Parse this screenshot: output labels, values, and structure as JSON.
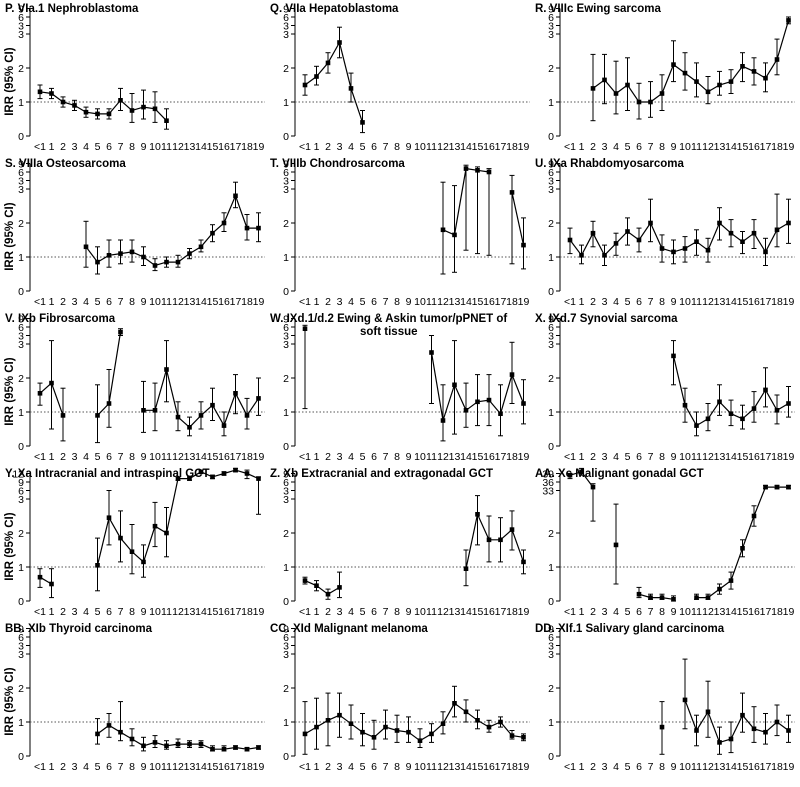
{
  "figure": {
    "y_axis_label": "IRR (95% CI)",
    "x_tick_labels": [
      "<1",
      "1",
      "2",
      "3",
      "4",
      "5",
      "6",
      "7",
      "8",
      "9",
      "10",
      "11",
      "12",
      "13",
      "14",
      "15",
      "16",
      "17",
      "18",
      "19"
    ],
    "y_tick_labels": [
      "0",
      "1",
      "2",
      "3",
      "3",
      "6",
      "9"
    ],
    "y_tick_labels_aa": [
      "0",
      "1",
      "2",
      "33",
      "36",
      "39"
    ],
    "y_tick_labels_y": [
      "0",
      "1",
      "2",
      "3",
      "6",
      "9",
      "12"
    ]
  },
  "chart_data": [
    {
      "type": "line",
      "title": "P. VIa.1 Nephroblastoma",
      "ylabel": "IRR (95% CI)",
      "reference_line": 1,
      "x": [
        0,
        1,
        2,
        3,
        4,
        5,
        6,
        7,
        8,
        9,
        10,
        11
      ],
      "values": [
        1.3,
        1.25,
        1.0,
        0.9,
        0.7,
        0.65,
        0.65,
        1.05,
        0.75,
        0.85,
        0.8,
        0.45
      ],
      "ci_low": [
        1.1,
        1.1,
        0.85,
        0.75,
        0.55,
        0.5,
        0.5,
        0.75,
        0.4,
        0.5,
        0.4,
        0.2
      ],
      "ci_high": [
        1.5,
        1.4,
        1.15,
        1.05,
        0.85,
        0.8,
        0.8,
        1.4,
        1.25,
        1.35,
        1.3,
        0.8
      ]
    },
    {
      "type": "line",
      "title": "Q. VIIa Hepatoblastoma",
      "ylabel": "",
      "reference_line": 1,
      "x": [
        0,
        1,
        2,
        3,
        4,
        5
      ],
      "values": [
        1.5,
        1.75,
        2.15,
        2.75,
        1.4,
        0.4
      ],
      "ci_low": [
        1.2,
        1.5,
        1.85,
        2.3,
        1.0,
        0.1
      ],
      "ci_high": [
        1.8,
        2.05,
        2.45,
        3.2,
        1.85,
        0.75
      ]
    },
    {
      "type": "line",
      "title": "R. VIIIc Ewing sarcoma",
      "ylabel": "",
      "reference_line": 1,
      "x": [
        2,
        3,
        4,
        5,
        6,
        7,
        8,
        9,
        10,
        11,
        12,
        13,
        14,
        15,
        16,
        17,
        18,
        19
      ],
      "values": [
        1.4,
        1.65,
        1.25,
        1.5,
        1.0,
        1.0,
        1.25,
        2.1,
        1.85,
        1.6,
        1.3,
        1.5,
        1.6,
        2.05,
        1.9,
        1.7,
        2.25,
        3.4
      ],
      "ci_low": [
        0.45,
        0.95,
        0.65,
        0.75,
        0.5,
        0.55,
        0.75,
        1.6,
        1.35,
        1.15,
        0.95,
        1.2,
        1.25,
        1.6,
        1.5,
        1.3,
        1.8,
        3.3
      ],
      "ci_high": [
        2.4,
        2.4,
        2.2,
        2.3,
        1.55,
        1.6,
        1.8,
        2.8,
        2.45,
        2.15,
        1.75,
        1.9,
        1.95,
        2.45,
        2.3,
        2.15,
        2.85,
        3.5
      ]
    },
    {
      "type": "line",
      "title": "S. VIIIa Osteosarcoma",
      "ylabel": "IRR (95% CI)",
      "reference_line": 1,
      "x": [
        4,
        5,
        6,
        7,
        8,
        9,
        10,
        11,
        12,
        13,
        14,
        15,
        16,
        17,
        18,
        19
      ],
      "values": [
        1.3,
        0.85,
        1.05,
        1.1,
        1.15,
        1.0,
        0.75,
        0.85,
        0.85,
        1.1,
        1.3,
        1.7,
        2.0,
        2.8,
        1.85,
        1.85
      ],
      "ci_low": [
        0.7,
        0.5,
        0.7,
        0.8,
        0.85,
        0.75,
        0.6,
        0.7,
        0.7,
        0.95,
        1.15,
        1.45,
        1.75,
        2.45,
        1.5,
        1.45
      ],
      "ci_high": [
        2.05,
        1.3,
        1.5,
        1.5,
        1.5,
        1.3,
        0.95,
        1.0,
        1.05,
        1.25,
        1.5,
        1.95,
        2.3,
        3.2,
        2.25,
        2.3
      ]
    },
    {
      "type": "line",
      "title": "T. VIIIb Chondrosarcoma",
      "ylabel": "",
      "reference_line": 1,
      "x": [
        12,
        13,
        14,
        15,
        16,
        18,
        19
      ],
      "values": [
        1.8,
        1.65,
        3.6,
        3.55,
        3.5,
        2.9,
        1.35
      ],
      "ci_low": [
        0.5,
        0.55,
        1.2,
        1.1,
        1.05,
        0.8,
        0.65
      ],
      "ci_high": [
        3.2,
        3.1,
        3.7,
        3.65,
        3.6,
        3.4,
        2.15
      ]
    },
    {
      "type": "line",
      "title": "U. IXa Rhabdomyosarcoma",
      "ylabel": "",
      "reference_line": 1,
      "x": [
        0,
        1,
        2,
        3,
        4,
        5,
        6,
        7,
        8,
        9,
        10,
        11,
        12,
        13,
        14,
        15,
        16,
        17,
        18,
        19
      ],
      "values": [
        1.5,
        1.05,
        1.7,
        1.05,
        1.4,
        1.75,
        1.5,
        2.0,
        1.25,
        1.15,
        1.25,
        1.45,
        1.2,
        2.0,
        1.7,
        1.45,
        1.7,
        1.15,
        1.8,
        2.0
      ],
      "ci_low": [
        1.1,
        0.8,
        1.3,
        0.75,
        1.05,
        1.35,
        1.15,
        1.45,
        0.85,
        0.8,
        0.85,
        1.05,
        0.85,
        1.5,
        1.3,
        1.1,
        1.25,
        0.75,
        1.3,
        1.4
      ],
      "ci_high": [
        1.85,
        1.35,
        2.05,
        1.35,
        1.7,
        2.15,
        1.85,
        2.7,
        1.65,
        1.5,
        1.6,
        1.8,
        1.55,
        2.45,
        2.1,
        1.75,
        2.1,
        1.55,
        2.85,
        2.7
      ]
    },
    {
      "type": "line",
      "title": "V. IXb Fibrosarcoma",
      "ylabel": "IRR (95% CI)",
      "reference_line": 1,
      "x": [
        0,
        1,
        2,
        5,
        6,
        7,
        9,
        10,
        11,
        12,
        13,
        14,
        15,
        16,
        17,
        18,
        19
      ],
      "values": [
        1.55,
        1.85,
        0.9,
        0.9,
        1.25,
        3.35,
        1.05,
        1.05,
        2.25,
        0.85,
        0.55,
        0.9,
        1.2,
        0.6,
        1.55,
        0.9,
        1.4
      ],
      "ci_low": [
        1.2,
        0.5,
        0.15,
        0.1,
        0.55,
        3.25,
        0.4,
        0.45,
        1.3,
        0.45,
        0.3,
        0.5,
        0.75,
        0.3,
        0.95,
        0.5,
        0.9
      ],
      "ci_high": [
        1.85,
        3.1,
        1.7,
        1.8,
        2.25,
        3.45,
        1.9,
        1.85,
        3.1,
        1.3,
        0.85,
        1.3,
        1.7,
        1.0,
        2.1,
        1.4,
        2.0
      ]
    },
    {
      "type": "line",
      "title": "W. IXd.1/d.2 Ewing & Askin tumor/pPNET of soft tissue",
      "ylabel": "",
      "reference_line": 1,
      "x": [
        0,
        11,
        12,
        13,
        14,
        15,
        16,
        17,
        18,
        19
      ],
      "values": [
        3.45,
        2.75,
        0.75,
        1.8,
        1.05,
        1.3,
        1.35,
        0.95,
        2.1,
        1.25
      ],
      "ci_low": [
        1.1,
        1.25,
        0.15,
        0.35,
        0.55,
        0.6,
        0.6,
        0.3,
        1.25,
        0.65
      ],
      "ci_high": [
        3.55,
        3.25,
        1.8,
        3.1,
        1.85,
        2.1,
        2.1,
        1.8,
        3.05,
        1.95
      ]
    },
    {
      "type": "line",
      "title": "X. IXd.7 Synovial sarcoma",
      "ylabel": "",
      "reference_line": 1,
      "x": [
        9,
        10,
        11,
        12,
        13,
        14,
        15,
        16,
        17,
        18,
        19
      ],
      "values": [
        2.65,
        1.2,
        0.6,
        0.8,
        1.3,
        0.95,
        0.8,
        1.1,
        1.65,
        1.05,
        1.25
      ],
      "ci_low": [
        1.8,
        0.7,
        0.3,
        0.45,
        0.9,
        0.6,
        0.5,
        0.7,
        1.15,
        0.65,
        0.85
      ],
      "ci_high": [
        3.1,
        1.7,
        1.0,
        1.25,
        1.8,
        1.35,
        1.2,
        1.6,
        2.3,
        1.5,
        1.75
      ]
    },
    {
      "type": "line",
      "title": "Y. Xa Intracranial and intraspinal GCT",
      "ylabel": "IRR (95% CI)",
      "reference_line": 1,
      "y_tick_values": [
        0,
        1,
        2,
        3,
        6,
        9,
        12
      ],
      "x": [
        0,
        1,
        5,
        6,
        7,
        8,
        9,
        10,
        11,
        12,
        13,
        14,
        15,
        16,
        17,
        18,
        19
      ],
      "values": [
        0.7,
        0.5,
        1.05,
        2.45,
        1.85,
        1.45,
        1.15,
        2.2,
        2.0,
        3.6,
        3.6,
        3.8,
        3.65,
        3.75,
        3.85,
        3.75,
        3.6
      ],
      "ci_low": [
        0.4,
        0.1,
        0.3,
        1.65,
        1.15,
        0.8,
        0.7,
        1.6,
        1.3,
        3.55,
        3.55,
        3.75,
        3.6,
        3.7,
        3.8,
        3.6,
        2.55
      ],
      "ci_high": [
        0.95,
        0.95,
        1.85,
        3.25,
        2.65,
        2.25,
        1.65,
        2.9,
        2.75,
        3.65,
        3.65,
        3.85,
        3.7,
        3.8,
        3.9,
        3.85,
        3.65
      ]
    },
    {
      "type": "line",
      "title": "Z. Xb Extracranial and extragonadal GCT",
      "ylabel": "",
      "reference_line": 1,
      "x": [
        0,
        1,
        2,
        3,
        14,
        15,
        16,
        17,
        18,
        19
      ],
      "values": [
        0.6,
        0.45,
        0.2,
        0.4,
        0.95,
        2.55,
        1.8,
        1.8,
        2.1,
        1.15
      ],
      "ci_low": [
        0.5,
        0.3,
        0.05,
        0.1,
        0.45,
        1.65,
        1.15,
        1.15,
        1.5,
        0.8
      ],
      "ci_high": [
        0.7,
        0.6,
        0.35,
        0.85,
        1.5,
        3.1,
        2.5,
        2.45,
        2.65,
        1.5
      ]
    },
    {
      "type": "line",
      "title": "AA. Xc Malignant gonadal GCT",
      "ylabel": "",
      "reference_line": 1,
      "y_tick_values": [
        0,
        1,
        2,
        33,
        36,
        39
      ],
      "x": [
        0,
        1,
        2,
        4,
        6,
        7,
        8,
        9,
        11,
        12,
        13,
        14,
        15,
        16,
        17,
        18,
        19
      ],
      "values": [
        3.7,
        3.8,
        3.35,
        1.65,
        0.2,
        0.1,
        0.1,
        0.05,
        0.1,
        0.1,
        0.35,
        0.6,
        1.55,
        2.5,
        3.35,
        3.35,
        3.35
      ],
      "ci_low": [
        3.6,
        3.7,
        2.35,
        0.5,
        0.1,
        0.05,
        0.05,
        0.0,
        0.05,
        0.05,
        0.2,
        0.35,
        1.3,
        2.2,
        3.3,
        3.3,
        3.3
      ],
      "ci_high": [
        3.75,
        3.9,
        3.45,
        2.85,
        0.4,
        0.2,
        0.2,
        0.15,
        0.2,
        0.2,
        0.5,
        0.85,
        1.8,
        2.8,
        3.4,
        3.4,
        3.4
      ]
    },
    {
      "type": "line",
      "title": "BB. XIb Thyroid carcinoma",
      "ylabel": "IRR (95% CI)",
      "reference_line": 1,
      "x": [
        5,
        6,
        7,
        8,
        9,
        10,
        11,
        12,
        13,
        14,
        15,
        16,
        17,
        18,
        19
      ],
      "values": [
        0.65,
        0.9,
        0.7,
        0.5,
        0.3,
        0.4,
        0.3,
        0.35,
        0.35,
        0.35,
        0.2,
        0.2,
        0.25,
        0.2,
        0.25
      ],
      "ci_low": [
        0.35,
        0.55,
        0.45,
        0.3,
        0.15,
        0.25,
        0.2,
        0.25,
        0.25,
        0.25,
        0.15,
        0.15,
        0.2,
        0.15,
        0.2
      ],
      "ci_high": [
        1.1,
        1.25,
        1.6,
        0.8,
        0.55,
        0.6,
        0.45,
        0.5,
        0.45,
        0.45,
        0.3,
        0.3,
        0.3,
        0.25,
        0.3
      ]
    },
    {
      "type": "line",
      "title": "CC. XId Malignant melanoma",
      "ylabel": "",
      "reference_line": 1,
      "x": [
        0,
        1,
        2,
        3,
        4,
        5,
        6,
        7,
        8,
        9,
        10,
        11,
        12,
        13,
        14,
        15,
        16,
        17,
        18,
        19
      ],
      "values": [
        0.65,
        0.85,
        1.05,
        1.2,
        0.95,
        0.7,
        0.55,
        0.85,
        0.75,
        0.7,
        0.45,
        0.65,
        0.95,
        1.55,
        1.3,
        1.05,
        0.85,
        1.0,
        0.6,
        0.55
      ],
      "ci_low": [
        0.05,
        0.2,
        0.3,
        0.55,
        0.5,
        0.3,
        0.2,
        0.5,
        0.4,
        0.4,
        0.25,
        0.4,
        0.65,
        1.15,
        1.0,
        0.8,
        0.7,
        0.85,
        0.5,
        0.45
      ],
      "ci_high": [
        1.6,
        1.7,
        1.85,
        1.85,
        1.5,
        1.25,
        1.05,
        1.35,
        1.2,
        1.15,
        0.8,
        0.95,
        1.3,
        2.05,
        1.65,
        1.35,
        1.05,
        1.15,
        0.75,
        0.65
      ]
    },
    {
      "type": "line",
      "title": "DD. XIf.1 Salivary gland carcinoma",
      "ylabel": "",
      "reference_line": 1,
      "x": [
        8,
        10,
        11,
        12,
        13,
        14,
        15,
        16,
        17,
        18,
        19
      ],
      "values": [
        0.85,
        1.65,
        0.75,
        1.3,
        0.4,
        0.5,
        1.2,
        0.8,
        0.7,
        1.0,
        0.75
      ],
      "ci_low": [
        0.05,
        0.8,
        0.3,
        0.55,
        0.05,
        0.1,
        0.7,
        0.4,
        0.35,
        0.6,
        0.4
      ],
      "ci_high": [
        1.6,
        2.85,
        1.2,
        2.2,
        0.85,
        1.0,
        1.85,
        1.45,
        1.25,
        1.5,
        1.2
      ]
    }
  ]
}
